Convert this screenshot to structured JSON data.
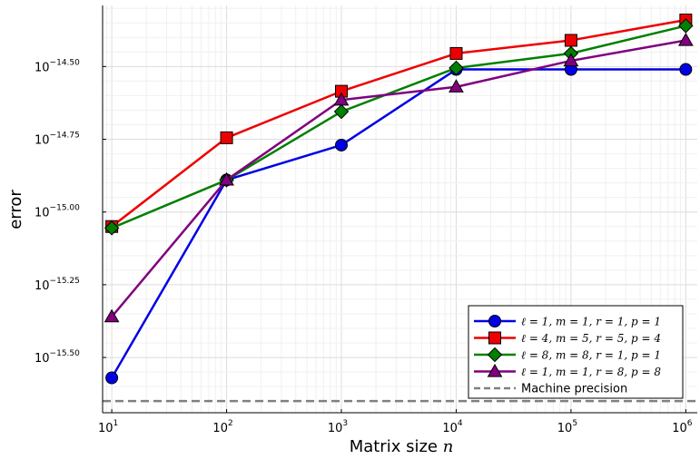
{
  "chart_data": {
    "type": "line",
    "title": "",
    "xlabel_prefix": "Matrix size ",
    "xlabel_var": "n",
    "ylabel": "error",
    "x_scale": "log10",
    "y_scale": "log10",
    "xlim_exp": [
      0.92,
      6.1
    ],
    "ylim_exp": [
      -15.69,
      -14.29
    ],
    "x_ticks": [
      {
        "base": "10",
        "exp": "1",
        "value_exp": 1
      },
      {
        "base": "10",
        "exp": "2",
        "value_exp": 2
      },
      {
        "base": "10",
        "exp": "3",
        "value_exp": 3
      },
      {
        "base": "10",
        "exp": "4",
        "value_exp": 4
      },
      {
        "base": "10",
        "exp": "5",
        "value_exp": 5
      },
      {
        "base": "10",
        "exp": "6",
        "value_exp": 6
      }
    ],
    "y_ticks": [
      {
        "base": "10",
        "exp": "−14.50",
        "value_exp": -14.5
      },
      {
        "base": "10",
        "exp": "−14.75",
        "value_exp": -14.75
      },
      {
        "base": "10",
        "exp": "−15.00",
        "value_exp": -15.0
      },
      {
        "base": "10",
        "exp": "−15.25",
        "value_exp": -15.25
      },
      {
        "base": "10",
        "exp": "−15.50",
        "value_exp": -15.5
      }
    ],
    "grid": true,
    "legend_position": "bottom-right",
    "x_exp": [
      1,
      2,
      3,
      4,
      5,
      6
    ],
    "series": [
      {
        "name": "ℓ = 1, m = 1, r = 1, p = 1",
        "color": "#0000e6",
        "marker": "circle",
        "y_exp": [
          -15.57,
          -14.89,
          -14.77,
          -14.51,
          -14.51,
          -14.51
        ]
      },
      {
        "name": "ℓ = 4, m = 5, r = 5, p = 4",
        "color": "#ee0000",
        "marker": "square",
        "y_exp": [
          -15.05,
          -14.745,
          -14.585,
          -14.455,
          -14.41,
          -14.34
        ]
      },
      {
        "name": "ℓ = 8, m = 8, r = 1, p = 1",
        "color": "#008000",
        "marker": "diamond",
        "y_exp": [
          -15.055,
          -14.89,
          -14.655,
          -14.505,
          -14.455,
          -14.36
        ]
      },
      {
        "name": "ℓ = 1, m = 1, r = 8, p = 8",
        "color": "#800080",
        "marker": "triangle",
        "y_exp": [
          -15.36,
          -14.89,
          -14.615,
          -14.57,
          -14.48,
          -14.41
        ]
      }
    ],
    "reference_lines": [
      {
        "name": "Machine precision",
        "color": "#808080",
        "style": "dashed",
        "y_exp": -15.65
      }
    ]
  }
}
